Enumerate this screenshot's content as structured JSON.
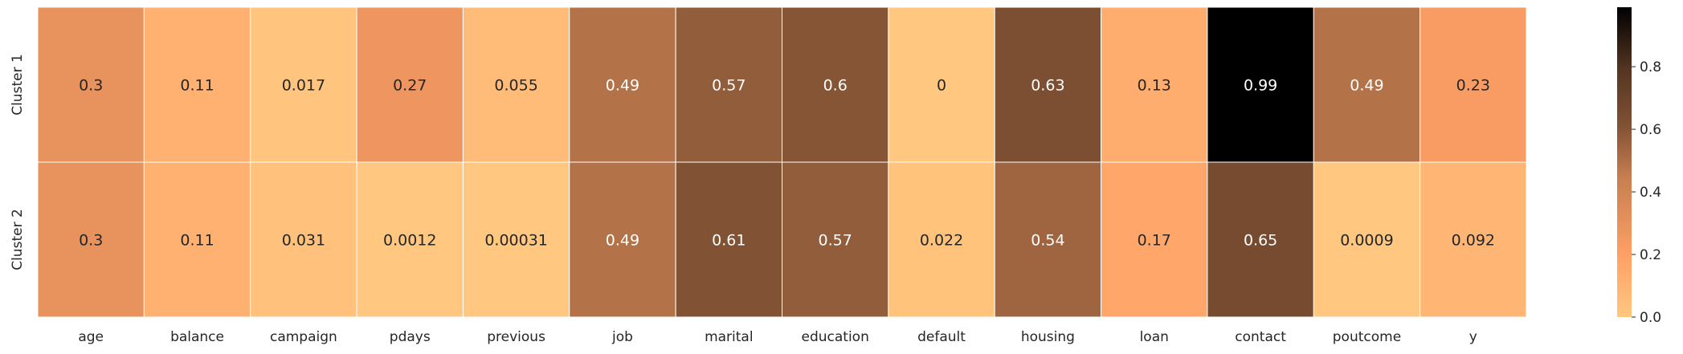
{
  "chart_data": {
    "type": "heatmap",
    "title": "",
    "xlabel": "",
    "ylabel": "",
    "x_labels": [
      "age",
      "balance",
      "campaign",
      "pdays",
      "previous",
      "job",
      "marital",
      "education",
      "default",
      "housing",
      "loan",
      "contact",
      "poutcome",
      "y"
    ],
    "y_labels": [
      "Cluster 1",
      "Cluster 2"
    ],
    "values": [
      [
        0.3,
        0.11,
        0.017,
        0.27,
        0.055,
        0.49,
        0.57,
        0.6,
        0,
        0.63,
        0.13,
        0.99,
        0.49,
        0.23
      ],
      [
        0.3,
        0.11,
        0.031,
        0.0012,
        0.00031,
        0.49,
        0.61,
        0.57,
        0.022,
        0.54,
        0.17,
        0.65,
        0.0009,
        0.092
      ]
    ],
    "annotations": [
      [
        "0.3",
        "0.11",
        "0.017",
        "0.27",
        "0.055",
        "0.49",
        "0.57",
        "0.6",
        "0",
        "0.63",
        "0.13",
        "0.99",
        "0.49",
        "0.23"
      ],
      [
        "0.3",
        "0.11",
        "0.031",
        "0.0012",
        "0.00031",
        "0.49",
        "0.61",
        "0.57",
        "0.022",
        "0.54",
        "0.17",
        "0.65",
        "0.0009",
        "0.092"
      ]
    ],
    "colorbar": {
      "range": [
        0,
        0.99
      ],
      "ticks": [
        "0.0",
        "0.2",
        "0.4",
        "0.6",
        "0.8"
      ],
      "colormap": "copper_r"
    },
    "grid": false,
    "legend": "colorbar-right"
  }
}
